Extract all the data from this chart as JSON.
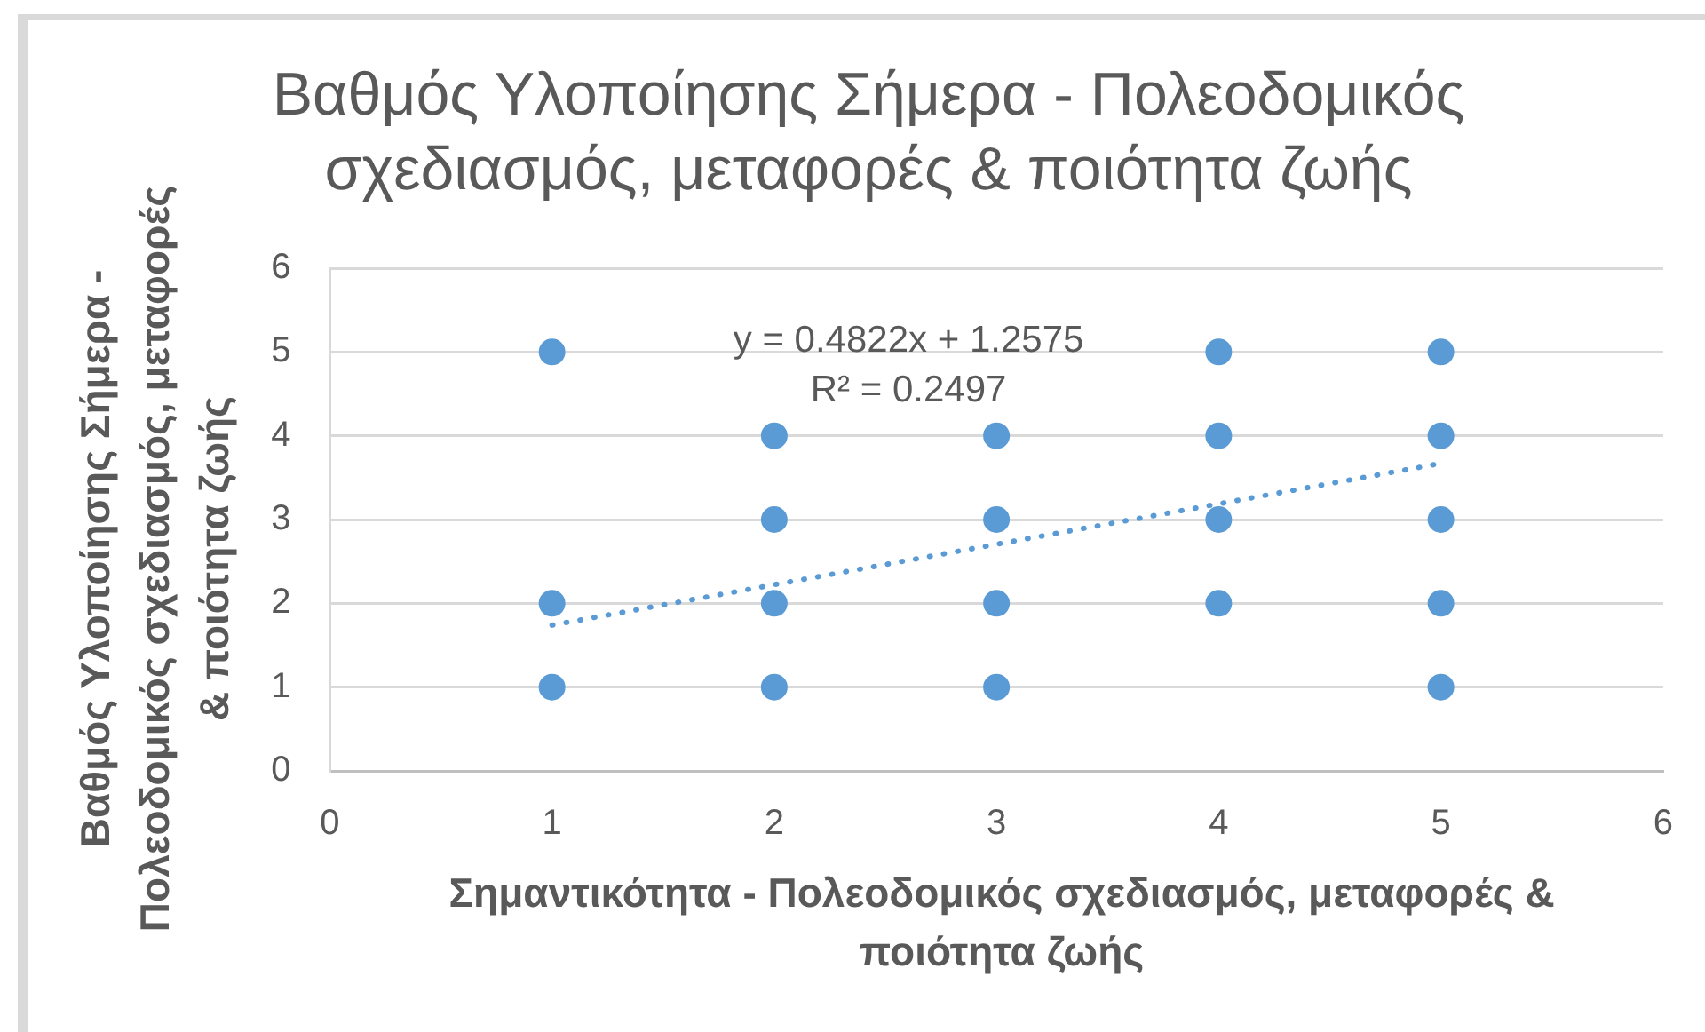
{
  "chart_data": {
    "type": "scatter",
    "title": "Βαθμός Υλοποίησης Σήμερα - Πολεοδομικός σχεδιασμός, μεταφορές & ποιότητα ζωής",
    "xlabel": "Σημαντικότητα - Πολεοδομικός σχεδιασμός, μεταφορές & ποιότητα ζωής",
    "ylabel": "Βαθμός Υλοποίησης Σήμερα - Πολεοδομικός σχεδιασμός, μεταφορές & ποιότητα ζωής",
    "annotations": [
      "y = 0.4822x + 1.2575",
      "R² = 0.2497"
    ],
    "series": [
      {
        "color": "#5b9bd5",
        "x": [
          1,
          1,
          1,
          2,
          2,
          2,
          2,
          3,
          3,
          3,
          3,
          4,
          4,
          4,
          4,
          5,
          5,
          5,
          5,
          5
        ],
        "values": [
          5,
          2,
          1,
          4,
          3,
          2,
          1,
          4,
          3,
          2,
          1,
          5,
          4,
          3,
          2,
          5,
          4,
          3,
          2,
          1
        ]
      },
      {
        "type": "line",
        "color": "#5b9bd5",
        "x": [
          1,
          5
        ],
        "values": [
          1.74,
          3.67
        ],
        "line_style": "dotted",
        "marker": "none"
      }
    ],
    "xlim": [
      0,
      6
    ],
    "xticks": [
      0,
      1,
      2,
      3,
      4,
      5,
      6
    ],
    "ylim": [
      0,
      6
    ],
    "yticks": [
      0,
      1,
      2,
      3,
      4,
      5,
      6
    ],
    "grid": "y",
    "marker": "circle"
  }
}
